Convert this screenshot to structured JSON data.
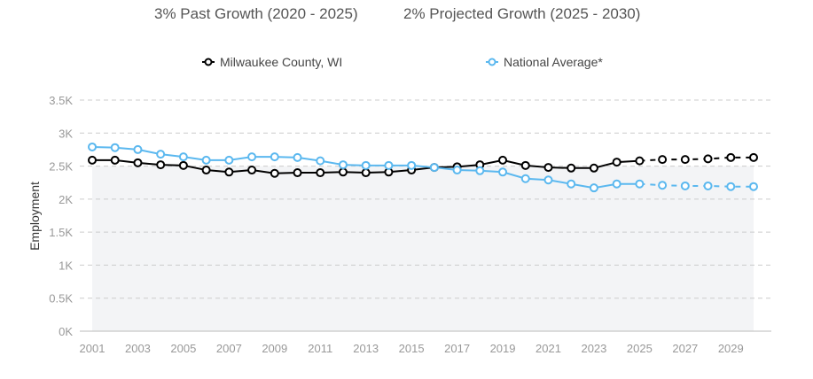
{
  "headlines": {
    "past": "3% Past Growth (2020 - 2025)",
    "projected": "2% Projected Growth (2025 - 2030)"
  },
  "colors": {
    "county": "#000000",
    "national": "#5bb8ef",
    "grid": "#cccccc",
    "shade": "#f3f4f6",
    "tick_text": "#999999"
  },
  "chart_data": {
    "type": "line",
    "title": "",
    "xlabel": "",
    "ylabel": "Employment",
    "ylim": [
      0,
      3500
    ],
    "yticks": [
      0,
      500,
      1000,
      1500,
      2000,
      2500,
      3000,
      3500
    ],
    "ytick_labels": [
      "0K",
      "0.5K",
      "1K",
      "1.5K",
      "2K",
      "2.5K",
      "3K",
      "3.5K"
    ],
    "x": [
      2001,
      2002,
      2003,
      2004,
      2005,
      2006,
      2007,
      2008,
      2009,
      2010,
      2011,
      2012,
      2013,
      2014,
      2015,
      2016,
      2017,
      2018,
      2019,
      2020,
      2021,
      2022,
      2023,
      2024,
      2025,
      2026,
      2027,
      2028,
      2029,
      2030
    ],
    "xtick_labels": [
      "2001",
      "2003",
      "2005",
      "2007",
      "2009",
      "2011",
      "2013",
      "2015",
      "2017",
      "2019",
      "2021",
      "2023",
      "2025",
      "2027",
      "2029"
    ],
    "projection_start": 2025,
    "grid": true,
    "legend_position": "top",
    "series": [
      {
        "name": "Milwaukee County, WI",
        "color": "#000000",
        "values": [
          2590,
          2590,
          2550,
          2520,
          2510,
          2440,
          2410,
          2440,
          2390,
          2400,
          2400,
          2410,
          2400,
          2410,
          2440,
          2480,
          2490,
          2520,
          2590,
          2510,
          2480,
          2470,
          2470,
          2560,
          2580,
          2600,
          2600,
          2610,
          2630,
          2630
        ]
      },
      {
        "name": "National Average*",
        "color": "#5bb8ef",
        "values": [
          2790,
          2780,
          2750,
          2680,
          2640,
          2590,
          2590,
          2640,
          2640,
          2630,
          2580,
          2520,
          2510,
          2510,
          2510,
          2480,
          2440,
          2430,
          2410,
          2310,
          2290,
          2230,
          2170,
          2230,
          2230,
          2210,
          2200,
          2200,
          2190,
          2190
        ]
      }
    ]
  }
}
